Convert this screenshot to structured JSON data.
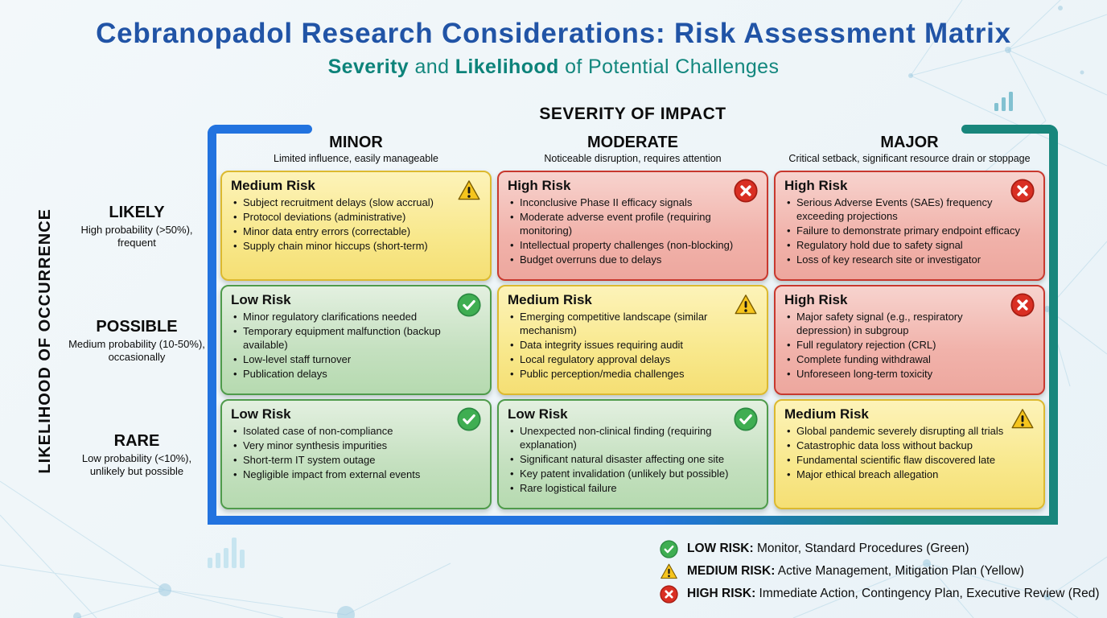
{
  "page": {
    "title": "Cebranopadol Research Considerations: Risk Assessment Matrix",
    "subtitle": {
      "severity": "Severity",
      "and": " and ",
      "likelihood": "Likelihood",
      "rest": " of Potential Challenges"
    }
  },
  "matrix": {
    "x_axis_title": "SEVERITY OF IMPACT",
    "y_axis_title": "LIKELIHOOD OF OCCURRENCE",
    "columns": [
      {
        "label": "MINOR",
        "description": "Limited influence, easily manageable"
      },
      {
        "label": "MODERATE",
        "description": "Noticeable disruption, requires attention"
      },
      {
        "label": "MAJOR",
        "description": "Critical setback, significant resource drain or stoppage"
      }
    ],
    "rows": [
      {
        "label": "LIKELY",
        "description": "High probability (>50%), frequent"
      },
      {
        "label": "POSSIBLE",
        "description": "Medium probability (10-50%), occasionally"
      },
      {
        "label": "RARE",
        "description": "Low probability (<10%), unlikely but possible"
      }
    ],
    "cells": [
      {
        "row": "LIKELY",
        "column": "MINOR",
        "risk": "Medium Risk",
        "level": "medium",
        "items": [
          "Subject recruitment delays (slow accrual)",
          "Protocol deviations (administrative)",
          "Minor data entry errors (correctable)",
          "Supply chain minor hiccups (short-term)"
        ]
      },
      {
        "row": "LIKELY",
        "column": "MODERATE",
        "risk": "High Risk",
        "level": "high",
        "items": [
          "Inconclusive Phase II efficacy signals",
          "Moderate adverse event profile (requiring monitoring)",
          "Intellectual property challenges (non-blocking)",
          "Budget overruns due to delays"
        ]
      },
      {
        "row": "LIKELY",
        "column": "MAJOR",
        "risk": "High Risk",
        "level": "high",
        "items": [
          "Serious Adverse Events (SAEs) frequency exceeding projections",
          "Failure to demonstrate primary endpoint efficacy",
          "Regulatory hold due to safety signal",
          "Loss of key research site or investigator"
        ]
      },
      {
        "row": "POSSIBLE",
        "column": "MINOR",
        "risk": "Low Risk",
        "level": "low",
        "items": [
          "Minor regulatory clarifications needed",
          "Temporary equipment malfunction (backup available)",
          "Low-level staff turnover",
          "Publication delays"
        ]
      },
      {
        "row": "POSSIBLE",
        "column": "MODERATE",
        "risk": "Medium Risk",
        "level": "medium",
        "items": [
          "Emerging competitive landscape (similar mechanism)",
          "Data integrity issues requiring audit",
          "Local regulatory approval delays",
          "Public perception/media challenges"
        ]
      },
      {
        "row": "POSSIBLE",
        "column": "MAJOR",
        "risk": "High Risk",
        "level": "high",
        "items": [
          "Major safety signal (e.g., respiratory depression) in subgroup",
          "Full regulatory rejection (CRL)",
          "Complete funding withdrawal",
          "Unforeseen long-term toxicity"
        ]
      },
      {
        "row": "RARE",
        "column": "MINOR",
        "risk": "Low Risk",
        "level": "low",
        "items": [
          "Isolated case of non-compliance",
          "Very minor synthesis impurities",
          "Short-term IT system outage",
          "Negligible impact from external events"
        ]
      },
      {
        "row": "RARE",
        "column": "MODERATE",
        "risk": "Low Risk",
        "level": "low",
        "items": [
          "Unexpected non-clinical finding (requiring explanation)",
          "Significant natural disaster affecting one site",
          "Key patent invalidation (unlikely but possible)",
          "Rare logistical failure"
        ]
      },
      {
        "row": "RARE",
        "column": "MAJOR",
        "risk": "Medium Risk",
        "level": "medium",
        "items": [
          "Global pandemic severely disrupting all trials",
          "Catastrophic data loss without backup",
          "Fundamental scientific flaw discovered late",
          "Major ethical breach allegation"
        ]
      }
    ]
  },
  "legend": [
    {
      "level": "low",
      "label": "LOW RISK:",
      "text": " Monitor, Standard Procedures (Green)"
    },
    {
      "level": "medium",
      "label": "MEDIUM RISK:",
      "text": " Active Management, Mitigation Plan (Yellow)"
    },
    {
      "level": "high",
      "label": "HIGH RISK:",
      "text": " Immediate Action, Contingency Plan, Executive Review (Red)"
    }
  ],
  "icons": {
    "low": "check-circle-icon",
    "medium": "warning-triangle-icon",
    "high": "x-circle-icon"
  },
  "colors": {
    "title_blue": "#2154a6",
    "subtitle_teal": "#0d837a",
    "frame_left_blue": "#2273df",
    "frame_right_teal": "#18867c",
    "low_risk_green": "#3fae52",
    "medium_risk_yellow": "#f6c51d",
    "high_risk_red": "#d92f23"
  }
}
